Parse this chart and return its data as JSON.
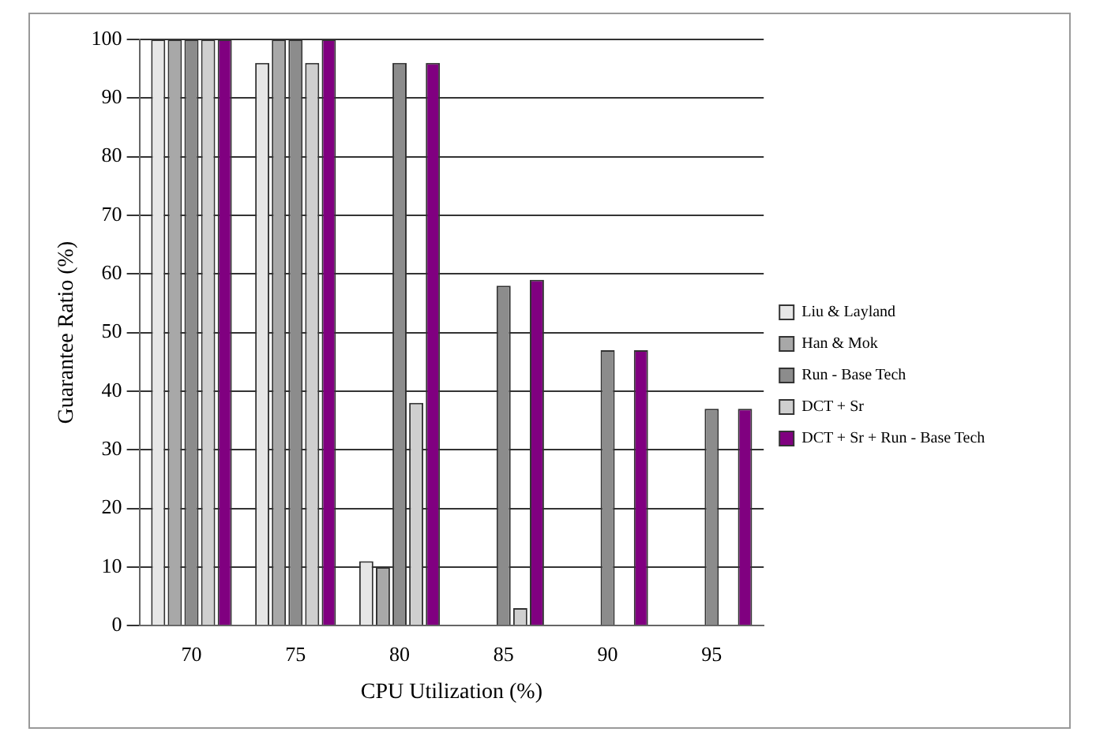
{
  "chart_data": {
    "type": "bar",
    "xlabel": "CPU Utilization (%)",
    "ylabel": "Guarantee Ratio (%)",
    "categories": [
      "70",
      "75",
      "80",
      "85",
      "90",
      "95"
    ],
    "series": [
      {
        "name": "Liu & Layland",
        "color": "#e6e6e6",
        "values": [
          100,
          96,
          11,
          0,
          0,
          0
        ]
      },
      {
        "name": "Han & Mok",
        "color": "#a8a8a8",
        "values": [
          100,
          100,
          10,
          0,
          0,
          0
        ]
      },
      {
        "name": "Run - Base Tech",
        "color": "#8c8c8c",
        "values": [
          100,
          100,
          96,
          58,
          47,
          37
        ]
      },
      {
        "name": "DCT + Sr",
        "color": "#cfcfcf",
        "values": [
          100,
          96,
          38,
          3,
          0,
          0
        ]
      },
      {
        "name": "DCT + Sr + Run - Base Tech",
        "color": "#800080",
        "values": [
          100,
          100,
          96,
          59,
          47,
          37
        ]
      }
    ],
    "ylim": [
      0,
      100
    ],
    "yticks": [
      0,
      10,
      20,
      30,
      40,
      50,
      60,
      70,
      80,
      90,
      100
    ],
    "grid": "y",
    "legend": "right"
  }
}
